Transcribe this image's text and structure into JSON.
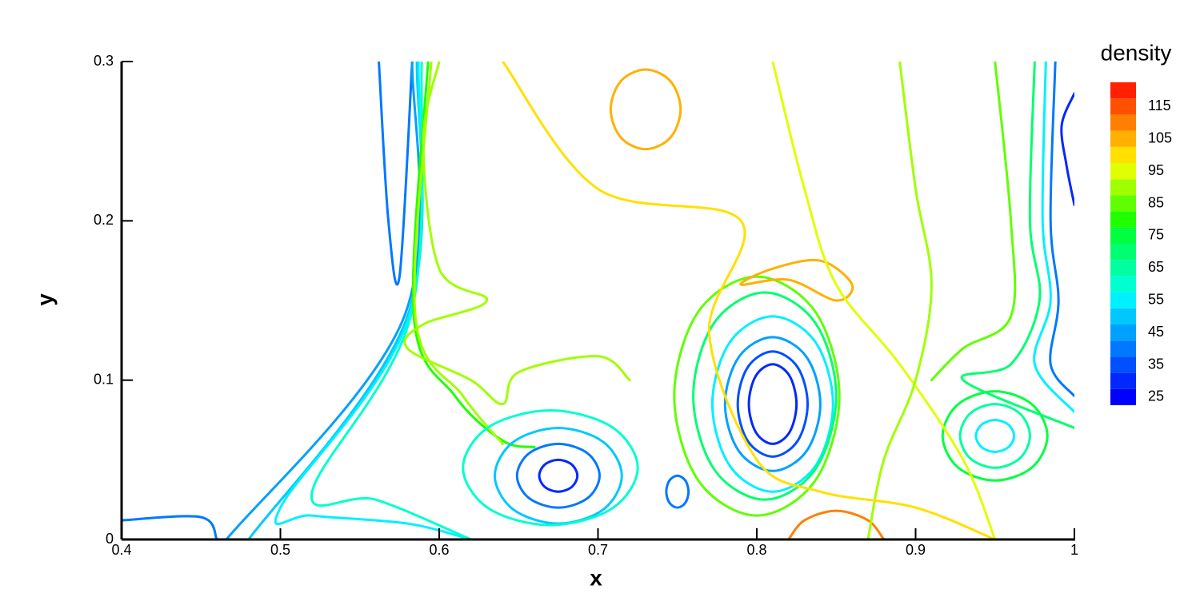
{
  "chart_data": {
    "type": "contour",
    "xlabel": "x",
    "ylabel": "y",
    "xlim": [
      0.4,
      1
    ],
    "ylim": [
      0,
      0.3
    ],
    "xticks": [
      0.4,
      0.5,
      0.6,
      0.7,
      0.8,
      0.9,
      1
    ],
    "yticks": [
      0,
      0.1,
      0.2,
      0.3
    ],
    "colorbar": {
      "title": "density",
      "lim": [
        22.5,
        122.5
      ],
      "ticks": [
        25,
        35,
        45,
        55,
        65,
        75,
        85,
        95,
        105,
        115
      ],
      "colors": [
        "#0000ff",
        "#0028ff",
        "#0050ff",
        "#0078ff",
        "#00a0ff",
        "#00c8ff",
        "#00f0ff",
        "#00ffd0",
        "#00ffa0",
        "#00ff70",
        "#00ff40",
        "#20ff00",
        "#60ff00",
        "#a0ff00",
        "#e0ff00",
        "#ffe000",
        "#ffb000",
        "#ff8000",
        "#ff5000",
        "#ff2000"
      ]
    },
    "contours": [
      {
        "level": 40,
        "closed": false,
        "x": [
          0.4,
          0.45,
          0.46
        ],
        "y": [
          0.012,
          0.014,
          0
        ]
      },
      {
        "level": 40,
        "closed": false,
        "x": [
          0.562,
          0.568,
          0.575,
          0.583
        ],
        "y": [
          0.3,
          0.2,
          0.165,
          0.3
        ]
      },
      {
        "level": 45,
        "closed": false,
        "x": [
          0.583,
          0.578,
          0.466
        ],
        "y": [
          0.3,
          0.14,
          0
        ]
      },
      {
        "level": 50,
        "closed": false,
        "x": [
          0.586,
          0.58,
          0.48
        ],
        "y": [
          0.3,
          0.14,
          0
        ]
      },
      {
        "level": 55,
        "closed": false,
        "x": [
          0.587,
          0.581,
          0.5,
          0.52,
          0.58,
          0.62
        ],
        "y": [
          0.3,
          0.14,
          0.02,
          0.015,
          0.01,
          0
        ]
      },
      {
        "level": 60,
        "closed": false,
        "x": [
          0.589,
          0.582,
          0.52,
          0.56,
          0.62
        ],
        "y": [
          0.3,
          0.14,
          0.03,
          0.025,
          0
        ]
      },
      {
        "level": 80,
        "closed": false,
        "x": [
          0.593,
          0.584,
          0.61,
          0.64,
          0.66
        ],
        "y": [
          0.3,
          0.14,
          0.09,
          0.062,
          0.058
        ]
      },
      {
        "level": 88,
        "closed": false,
        "x": [
          0.595,
          0.585,
          0.615,
          0.64
        ],
        "y": [
          0.3,
          0.14,
          0.09,
          0.06
        ]
      },
      {
        "level": 92,
        "closed": false,
        "x": [
          0.6,
          0.59,
          0.6,
          0.63,
          0.59,
          0.58,
          0.62,
          0.64,
          0.65,
          0.7,
          0.72
        ],
        "y": [
          0.3,
          0.25,
          0.17,
          0.15,
          0.135,
          0.12,
          0.1,
          0.085,
          0.105,
          0.115,
          0.1
        ]
      },
      {
        "level": 30,
        "closed": true,
        "x": [
          0.687,
          0.6835,
          0.675,
          0.6665,
          0.663,
          0.6665,
          0.675,
          0.6835
        ],
        "y": [
          0.04,
          0.047,
          0.05,
          0.047,
          0.04,
          0.033,
          0.03,
          0.033
        ]
      },
      {
        "level": 40,
        "closed": true,
        "x": [
          0.701,
          0.6934,
          0.675,
          0.6566,
          0.649,
          0.6566,
          0.675,
          0.6934
        ],
        "y": [
          0.04,
          0.0541,
          0.06,
          0.0541,
          0.04,
          0.0259,
          0.02,
          0.0259
        ]
      },
      {
        "level": 50,
        "closed": true,
        "x": [
          0.715,
          0.7033,
          0.675,
          0.6467,
          0.635,
          0.6467,
          0.675,
          0.7033
        ],
        "y": [
          0.04,
          0.0612,
          0.07,
          0.0612,
          0.04,
          0.0188,
          0.01,
          0.0188
        ]
      },
      {
        "level": 60,
        "closed": true,
        "x": [
          0.725,
          0.7089,
          0.67,
          0.6311,
          0.615,
          0.6311,
          0.67,
          0.7089
        ],
        "y": [
          0.045,
          0.0705,
          0.081,
          0.0705,
          0.045,
          0.0195,
          0.009,
          0.0195
        ]
      },
      {
        "level": 30,
        "closed": true,
        "x": [
          0.825,
          0.8206,
          0.81,
          0.7994,
          0.795,
          0.7994,
          0.81,
          0.8206
        ],
        "y": [
          0.085,
          0.1027,
          0.11,
          0.1027,
          0.085,
          0.0673,
          0.06,
          0.0673
        ]
      },
      {
        "level": 35,
        "closed": true,
        "x": [
          0.832,
          0.8256,
          0.81,
          0.7944,
          0.788,
          0.7944,
          0.81,
          0.8256
        ],
        "y": [
          0.085,
          0.1083,
          0.118,
          0.1083,
          0.085,
          0.0617,
          0.052,
          0.0617
        ]
      },
      {
        "level": 45,
        "closed": true,
        "x": [
          0.84,
          0.8312,
          0.81,
          0.7888,
          0.78,
          0.7888,
          0.81,
          0.8312
        ],
        "y": [
          0.085,
          0.1147,
          0.127,
          0.1147,
          0.085,
          0.0553,
          0.043,
          0.0553
        ]
      },
      {
        "level": 55,
        "closed": true,
        "x": [
          0.848,
          0.8369,
          0.81,
          0.7831,
          0.772,
          0.7831,
          0.81,
          0.8369
        ],
        "y": [
          0.085,
          0.1239,
          0.14,
          0.1239,
          0.085,
          0.0461,
          0.03,
          0.0461
        ]
      },
      {
        "level": 70,
        "closed": true,
        "x": [
          0.85,
          0.8368,
          0.805,
          0.7732,
          0.76,
          0.7732,
          0.805,
          0.8368
        ],
        "y": [
          0.09,
          0.136,
          0.155,
          0.136,
          0.09,
          0.044,
          0.025,
          0.044
        ]
      },
      {
        "level": 85,
        "closed": true,
        "x": [
          0.852,
          0.8368,
          0.8,
          0.7632,
          0.748,
          0.7632,
          0.8,
          0.8368
        ],
        "y": [
          0.09,
          0.143,
          0.165,
          0.143,
          0.09,
          0.037,
          0.015,
          0.037
        ]
      },
      {
        "level": 40,
        "closed": true,
        "x": [
          0.757,
          0.755,
          0.75,
          0.745,
          0.743,
          0.745,
          0.75,
          0.755
        ],
        "y": [
          0.03,
          0.037,
          0.04,
          0.037,
          0.03,
          0.023,
          0.02,
          0.023
        ]
      },
      {
        "level": 55,
        "closed": true,
        "x": [
          0.962,
          0.9585,
          0.95,
          0.9415,
          0.938,
          0.9415,
          0.95,
          0.9585
        ],
        "y": [
          0.065,
          0.072,
          0.075,
          0.072,
          0.065,
          0.058,
          0.055,
          0.058
        ]
      },
      {
        "level": 65,
        "closed": true,
        "x": [
          0.972,
          0.9656,
          0.95,
          0.9344,
          0.928,
          0.9344,
          0.95,
          0.9656
        ],
        "y": [
          0.065,
          0.0791,
          0.085,
          0.0791,
          0.065,
          0.0509,
          0.045,
          0.0509
        ]
      },
      {
        "level": 75,
        "closed": true,
        "x": [
          0.983,
          0.9733,
          0.95,
          0.9267,
          0.917,
          0.9267,
          0.95,
          0.9733
        ],
        "y": [
          0.065,
          0.0848,
          0.093,
          0.0848,
          0.065,
          0.0452,
          0.037,
          0.0452
        ]
      },
      {
        "level": 105,
        "closed": true,
        "x": [
          0.752,
          0.7456,
          0.73,
          0.7144,
          0.708,
          0.7144,
          0.73,
          0.7456
        ],
        "y": [
          0.27,
          0.2877,
          0.295,
          0.2877,
          0.27,
          0.2523,
          0.245,
          0.2523
        ]
      },
      {
        "level": 112,
        "closed": false,
        "x": [
          0.82,
          0.83,
          0.85,
          0.87,
          0.88
        ],
        "y": [
          0,
          0.012,
          0.018,
          0.012,
          0
        ]
      },
      {
        "level": 105,
        "closed": true,
        "x": [
          0.79,
          0.81,
          0.84,
          0.86,
          0.85,
          0.82
        ],
        "y": [
          0.16,
          0.17,
          0.175,
          0.16,
          0.15,
          0.163
        ]
      },
      {
        "level": 40,
        "closed": false,
        "x": [
          0.988,
          0.985,
          0.99,
          0.985,
          1.0
        ],
        "y": [
          0.3,
          0.2,
          0.15,
          0.11,
          0.09
        ]
      },
      {
        "level": 55,
        "closed": false,
        "x": [
          0.982,
          0.98,
          0.985,
          0.975,
          1.0
        ],
        "y": [
          0.3,
          0.2,
          0.15,
          0.11,
          0.08
        ]
      },
      {
        "level": 70,
        "closed": false,
        "x": [
          0.975,
          0.972,
          0.978,
          0.96,
          0.93,
          1.0
        ],
        "y": [
          0.3,
          0.2,
          0.15,
          0.11,
          0.1,
          0.07
        ]
      },
      {
        "level": 30,
        "closed": false,
        "x": [
          1.0,
          0.992,
          0.995,
          1.0
        ],
        "y": [
          0.28,
          0.26,
          0.235,
          0.21
        ]
      },
      {
        "level": 95,
        "closed": false,
        "x": [
          0.81,
          0.83,
          0.85,
          0.89,
          0.93,
          0.95
        ],
        "y": [
          0.3,
          0.22,
          0.16,
          0.11,
          0.05,
          0.0
        ]
      },
      {
        "level": 90,
        "closed": false,
        "x": [
          0.89,
          0.9,
          0.91,
          0.9,
          0.88,
          0.87
        ],
        "y": [
          0.3,
          0.22,
          0.16,
          0.1,
          0.05,
          0.0
        ]
      },
      {
        "level": 85,
        "closed": false,
        "x": [
          0.95,
          0.96,
          0.96,
          0.93,
          0.91
        ],
        "y": [
          0.3,
          0.2,
          0.14,
          0.12,
          0.1
        ]
      },
      {
        "level": 100,
        "closed": false,
        "x": [
          0.64,
          0.7,
          0.79,
          0.77,
          0.8,
          0.84,
          0.9,
          0.95
        ],
        "y": [
          0.3,
          0.22,
          0.2,
          0.13,
          0.05,
          0.03,
          0.02,
          0.0
        ]
      }
    ]
  }
}
